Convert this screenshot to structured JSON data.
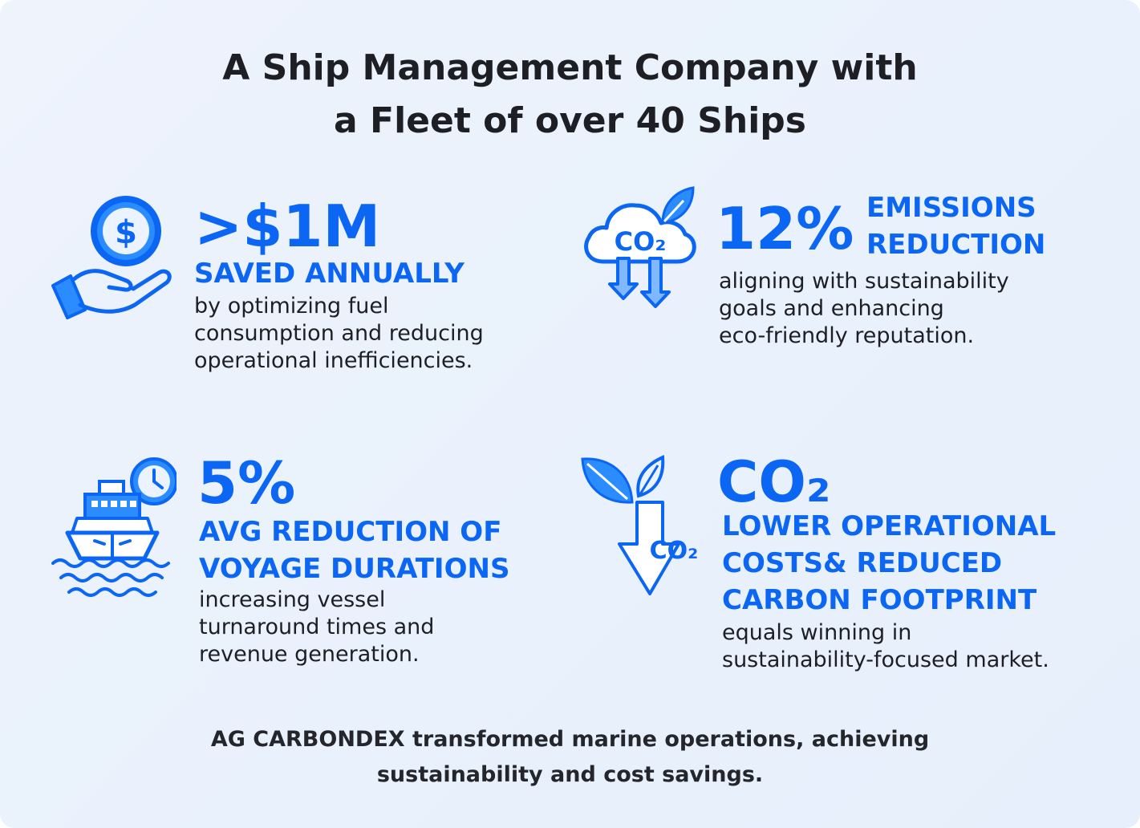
{
  "title": {
    "line1": "A Ship Management Company with",
    "line2": "a Fleet of over 40 Ships"
  },
  "accent_color": "#0a66f3",
  "text_color": "#1e1f24",
  "stats": [
    {
      "icon": "hand-coin-dollar-icon",
      "value": ">$1M",
      "heading": [
        "SAVED ANNUALLY"
      ],
      "description": [
        "by optimizing fuel",
        "consumption and reducing",
        "operational inefficiencies."
      ]
    },
    {
      "icon": "co2-cloud-leaf-arrows-icon",
      "icon_text": "CO₂",
      "value": "12%",
      "heading": [
        "EMISSIONS",
        "REDUCTION"
      ],
      "description": [
        "aligning with sustainability",
        "goals and enhancing",
        "eco-friendly reputation."
      ]
    },
    {
      "icon": "ship-clock-waves-icon",
      "value": "5%",
      "heading": [
        "AVG REDUCTION OF",
        "VOYAGE DURATIONS"
      ],
      "description": [
        "increasing vessel",
        "turnaround times and",
        "revenue generation."
      ]
    },
    {
      "icon": "leaves-co2-down-arrow-icon",
      "icon_text": "CO₂",
      "value": "CO₂",
      "heading": [
        "LOWER OPERATIONAL",
        "COSTS& REDUCED",
        "CARBON FOOTPRINT"
      ],
      "description": [
        "equals winning in",
        "sustainability-focused market."
      ]
    }
  ],
  "footer": {
    "line1": "AG CARBONDEX transformed marine operations, achieving",
    "line2": "sustainability and cost savings."
  }
}
